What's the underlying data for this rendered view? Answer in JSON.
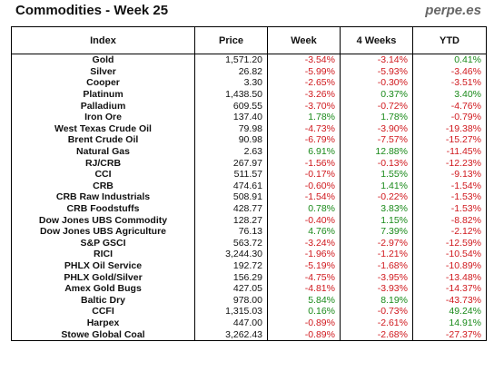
{
  "title": "Commodities - Week 25",
  "brand": "perpe.es",
  "columns": [
    "Index",
    "Price",
    "Week",
    "4 Weeks",
    "YTD"
  ],
  "rows": [
    {
      "name": "Gold",
      "price": "1,571.20",
      "week": "-3.54%",
      "w4": "-3.14%",
      "ytd": "0.41%"
    },
    {
      "name": "Silver",
      "price": "26.82",
      "week": "-5.99%",
      "w4": "-5.93%",
      "ytd": "-3.46%"
    },
    {
      "name": "Cooper",
      "price": "3.30",
      "week": "-2.65%",
      "w4": "-0.30%",
      "ytd": "-3.51%"
    },
    {
      "name": "Platinum",
      "price": "1,438.50",
      "week": "-3.26%",
      "w4": "0.37%",
      "ytd": "3.40%"
    },
    {
      "name": "Palladium",
      "price": "609.55",
      "week": "-3.70%",
      "w4": "-0.72%",
      "ytd": "-4.76%"
    },
    {
      "name": "Iron Ore",
      "price": "137.40",
      "week": "1.78%",
      "w4": "1.78%",
      "ytd": "-0.79%"
    },
    {
      "name": "West Texas Crude Oil",
      "price": "79.98",
      "week": "-4.73%",
      "w4": "-3.90%",
      "ytd": "-19.38%"
    },
    {
      "name": "Brent Crude Oil",
      "price": "90.98",
      "week": "-6.79%",
      "w4": "-7.57%",
      "ytd": "-15.27%"
    },
    {
      "name": "Natural Gas",
      "price": "2.63",
      "week": "6.91%",
      "w4": "12.88%",
      "ytd": "-11.45%"
    },
    {
      "name": "RJ/CRB",
      "price": "267.97",
      "week": "-1.56%",
      "w4": "-0.13%",
      "ytd": "-12.23%"
    },
    {
      "name": "CCI",
      "price": "511.57",
      "week": "-0.17%",
      "w4": "1.55%",
      "ytd": "-9.13%"
    },
    {
      "name": "CRB",
      "price": "474.61",
      "week": "-0.60%",
      "w4": "1.41%",
      "ytd": "-1.54%"
    },
    {
      "name": "CRB Raw Industrials",
      "price": "508.91",
      "week": "-1.54%",
      "w4": "-0.22%",
      "ytd": "-1.53%"
    },
    {
      "name": "CRB Foodstuffs",
      "price": "428.77",
      "week": "0.78%",
      "w4": "3.83%",
      "ytd": "-1.53%"
    },
    {
      "name": "Dow Jones UBS Commodity",
      "price": "128.27",
      "week": "-0.40%",
      "w4": "1.15%",
      "ytd": "-8.82%"
    },
    {
      "name": "Dow Jones UBS Agriculture",
      "price": "76.13",
      "week": "4.76%",
      "w4": "7.39%",
      "ytd": "-2.12%"
    },
    {
      "name": "S&P GSCI",
      "price": "563.72",
      "week": "-3.24%",
      "w4": "-2.97%",
      "ytd": "-12.59%"
    },
    {
      "name": "RICI",
      "price": "3,244.30",
      "week": "-1.96%",
      "w4": "-1.21%",
      "ytd": "-10.54%"
    },
    {
      "name": "PHLX Oil Service",
      "price": "192.72",
      "week": "-5.19%",
      "w4": "-1.68%",
      "ytd": "-10.89%"
    },
    {
      "name": "PHLX Gold/Silver",
      "price": "156.29",
      "week": "-4.75%",
      "w4": "-3.95%",
      "ytd": "-13.48%"
    },
    {
      "name": "Amex Gold Bugs",
      "price": "427.05",
      "week": "-4.81%",
      "w4": "-3.93%",
      "ytd": "-14.37%"
    },
    {
      "name": "Baltic Dry",
      "price": "978.00",
      "week": "5.84%",
      "w4": "8.19%",
      "ytd": "-43.73%"
    },
    {
      "name": "CCFI",
      "price": "1,315.03",
      "week": "0.16%",
      "w4": "-0.73%",
      "ytd": "49.24%"
    },
    {
      "name": "Harpex",
      "price": "447.00",
      "week": "-0.89%",
      "w4": "-2.61%",
      "ytd": "14.91%"
    },
    {
      "name": "Stowe Global Coal",
      "price": "3,262.43",
      "week": "-0.89%",
      "w4": "-2.68%",
      "ytd": "-27.37%"
    }
  ]
}
